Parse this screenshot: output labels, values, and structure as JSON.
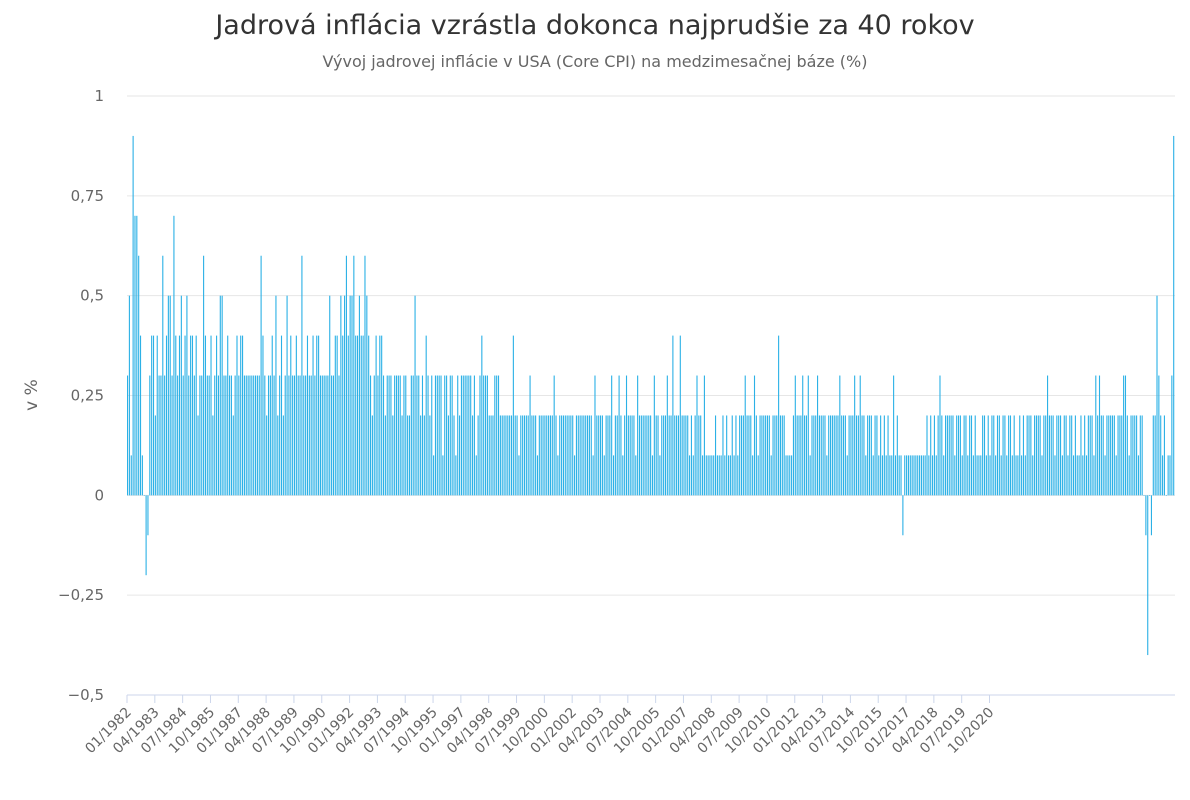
{
  "chart_data": {
    "type": "bar",
    "title": "Jadrová inflácia vzrástla dokonca najprudšie za 40 rokov",
    "subtitle": "Vývoj jadrovej inflácie v USA (Core CPI) na medzimesačnej báze (%)",
    "ylabel": "v %",
    "xlabel": "",
    "ylim": [
      -0.5,
      1
    ],
    "yticks": [
      1,
      0.75,
      0.5,
      0.25,
      0,
      -0.25,
      -0.5
    ],
    "ytick_labels": [
      "1",
      "0,75",
      "0,5",
      "0,25",
      "0",
      "−0,25",
      "−0,5"
    ],
    "grid": true,
    "color": "#2cb1e6",
    "x_start": "01/1982",
    "x_end": "04/2021",
    "xtick_labels": [
      "01/1982",
      "04/1983",
      "07/1984",
      "10/1985",
      "01/1987",
      "04/1988",
      "07/1989",
      "10/1990",
      "01/1992",
      "04/1993",
      "07/1994",
      "10/1995",
      "01/1997",
      "04/1998",
      "07/1999",
      "10/2000",
      "01/2002",
      "04/2003",
      "07/2004",
      "10/2005",
      "01/2007",
      "04/2008",
      "07/2009",
      "10/2010",
      "01/2012",
      "04/2013",
      "07/2014",
      "10/2015",
      "01/2017",
      "04/2018",
      "07/2019",
      "10/2020"
    ],
    "values": [
      0.3,
      0.5,
      0.1,
      0.9,
      0.7,
      0.7,
      0.6,
      0.4,
      0.1,
      0.0,
      -0.2,
      -0.1,
      0.3,
      0.4,
      0.4,
      0.2,
      0.4,
      0.3,
      0.3,
      0.6,
      0.3,
      0.4,
      0.5,
      0.5,
      0.3,
      0.7,
      0.4,
      0.3,
      0.4,
      0.5,
      0.3,
      0.4,
      0.5,
      0.3,
      0.4,
      0.4,
      0.3,
      0.4,
      0.2,
      0.3,
      0.3,
      0.6,
      0.4,
      0.3,
      0.3,
      0.4,
      0.2,
      0.3,
      0.4,
      0.3,
      0.5,
      0.5,
      0.3,
      0.3,
      0.4,
      0.3,
      0.3,
      0.2,
      0.3,
      0.4,
      0.3,
      0.4,
      0.4,
      0.3,
      0.3,
      0.3,
      0.3,
      0.3,
      0.3,
      0.3,
      0.3,
      0.3,
      0.6,
      0.4,
      0.3,
      0.2,
      0.3,
      0.3,
      0.4,
      0.3,
      0.5,
      0.2,
      0.3,
      0.4,
      0.2,
      0.3,
      0.5,
      0.3,
      0.4,
      0.3,
      0.3,
      0.4,
      0.3,
      0.3,
      0.6,
      0.3,
      0.3,
      0.4,
      0.3,
      0.3,
      0.4,
      0.3,
      0.4,
      0.4,
      0.3,
      0.3,
      0.3,
      0.3,
      0.3,
      0.5,
      0.3,
      0.3,
      0.4,
      0.4,
      0.3,
      0.5,
      0.4,
      0.5,
      0.6,
      0.4,
      0.5,
      0.5,
      0.6,
      0.4,
      0.4,
      0.5,
      0.4,
      0.4,
      0.6,
      0.5,
      0.4,
      0.3,
      0.2,
      0.3,
      0.4,
      0.3,
      0.4,
      0.4,
      0.3,
      0.2,
      0.3,
      0.3,
      0.3,
      0.2,
      0.3,
      0.3,
      0.3,
      0.3,
      0.2,
      0.3,
      0.3,
      0.2,
      0.2,
      0.3,
      0.3,
      0.5,
      0.3,
      0.3,
      0.2,
      0.3,
      0.2,
      0.4,
      0.3,
      0.2,
      0.3,
      0.1,
      0.3,
      0.3,
      0.3,
      0.3,
      0.1,
      0.3,
      0.3,
      0.2,
      0.3,
      0.3,
      0.2,
      0.1,
      0.3,
      0.2,
      0.3,
      0.3,
      0.3,
      0.3,
      0.3,
      0.3,
      0.2,
      0.3,
      0.1,
      0.2,
      0.3,
      0.4,
      0.3,
      0.3,
      0.3,
      0.2,
      0.2,
      0.2,
      0.3,
      0.3,
      0.3,
      0.2,
      0.2,
      0.2,
      0.2,
      0.2,
      0.2,
      0.2,
      0.4,
      0.2,
      0.2,
      0.1,
      0.2,
      0.2,
      0.2,
      0.2,
      0.2,
      0.3,
      0.2,
      0.2,
      0.2,
      0.1,
      0.2,
      0.2,
      0.2,
      0.2,
      0.2,
      0.2,
      0.2,
      0.2,
      0.3,
      0.2,
      0.1,
      0.2,
      0.2,
      0.2,
      0.2,
      0.2,
      0.2,
      0.2,
      0.2,
      0.1,
      0.2,
      0.2,
      0.2,
      0.2,
      0.2,
      0.2,
      0.2,
      0.2,
      0.2,
      0.1,
      0.3,
      0.2,
      0.2,
      0.2,
      0.2,
      0.1,
      0.2,
      0.2,
      0.2,
      0.3,
      0.1,
      0.2,
      0.2,
      0.3,
      0.2,
      0.1,
      0.2,
      0.3,
      0.2,
      0.2,
      0.2,
      0.2,
      0.1,
      0.3,
      0.2,
      0.2,
      0.2,
      0.2,
      0.2,
      0.2,
      0.2,
      0.1,
      0.3,
      0.2,
      0.2,
      0.1,
      0.2,
      0.2,
      0.2,
      0.3,
      0.2,
      0.2,
      0.4,
      0.2,
      0.2,
      0.2,
      0.4,
      0.2,
      0.2,
      0.2,
      0.2,
      0.1,
      0.2,
      0.1,
      0.2,
      0.3,
      0.2,
      0.2,
      0.1,
      0.3,
      0.1,
      0.1,
      0.1,
      0.1,
      0.1,
      0.2,
      0.1,
      0.1,
      0.1,
      0.2,
      0.1,
      0.2,
      0.1,
      0.1,
      0.2,
      0.1,
      0.2,
      0.1,
      0.2,
      0.2,
      0.2,
      0.3,
      0.2,
      0.2,
      0.2,
      0.1,
      0.3,
      0.2,
      0.1,
      0.2,
      0.2,
      0.2,
      0.2,
      0.2,
      0.2,
      0.1,
      0.2,
      0.2,
      0.2,
      0.4,
      0.2,
      0.2,
      0.2,
      0.1,
      0.1,
      0.1,
      0.1,
      0.2,
      0.3,
      0.2,
      0.2,
      0.2,
      0.3,
      0.2,
      0.2,
      0.3,
      0.1,
      0.2,
      0.2,
      0.2,
      0.3,
      0.2,
      0.2,
      0.2,
      0.2,
      0.1,
      0.2,
      0.2,
      0.2,
      0.2,
      0.2,
      0.2,
      0.3,
      0.2,
      0.2,
      0.2,
      0.1,
      0.2,
      0.2,
      0.2,
      0.3,
      0.2,
      0.2,
      0.3,
      0.2,
      0.2,
      0.1,
      0.2,
      0.2,
      0.2,
      0.1,
      0.2,
      0.2,
      0.1,
      0.2,
      0.1,
      0.2,
      0.1,
      0.2,
      0.1,
      0.1,
      0.3,
      0.1,
      0.2,
      0.1,
      0.1,
      -0.1,
      0.1,
      0.1,
      0.1,
      0.1,
      0.1,
      0.1,
      0.1,
      0.1,
      0.1,
      0.1,
      0.1,
      0.1,
      0.2,
      0.1,
      0.2,
      0.1,
      0.2,
      0.1,
      0.2,
      0.3,
      0.2,
      0.1,
      0.2,
      0.2,
      0.2,
      0.2,
      0.2,
      0.1,
      0.2,
      0.2,
      0.2,
      0.1,
      0.2,
      0.2,
      0.1,
      0.2,
      0.2,
      0.1,
      0.2,
      0.1,
      0.1,
      0.1,
      0.2,
      0.2,
      0.1,
      0.2,
      0.1,
      0.2,
      0.2,
      0.1,
      0.2,
      0.2,
      0.1,
      0.2,
      0.2,
      0.1,
      0.2,
      0.2,
      0.1,
      0.2,
      0.1,
      0.1,
      0.2,
      0.1,
      0.2,
      0.1,
      0.2,
      0.2,
      0.2,
      0.1,
      0.2,
      0.2,
      0.2,
      0.2,
      0.1,
      0.2,
      0.2,
      0.3,
      0.2,
      0.2,
      0.2,
      0.1,
      0.2,
      0.2,
      0.2,
      0.1,
      0.2,
      0.2,
      0.1,
      0.2,
      0.2,
      0.1,
      0.2,
      0.1,
      0.1,
      0.2,
      0.1,
      0.2,
      0.1,
      0.2,
      0.2,
      0.2,
      0.1,
      0.3,
      0.2,
      0.3,
      0.2,
      0.2,
      0.1,
      0.2,
      0.2,
      0.2,
      0.2,
      0.2,
      0.1,
      0.2,
      0.2,
      0.2,
      0.3,
      0.3,
      0.2,
      0.1,
      0.2,
      0.2,
      0.2,
      0.2,
      0.1,
      0.2,
      0.2,
      0.0,
      -0.1,
      -0.4,
      0.0,
      -0.1,
      0.2,
      0.2,
      0.5,
      0.3,
      0.2,
      0.1,
      0.2,
      0.0,
      0.1,
      0.1,
      0.3,
      0.9
    ]
  }
}
